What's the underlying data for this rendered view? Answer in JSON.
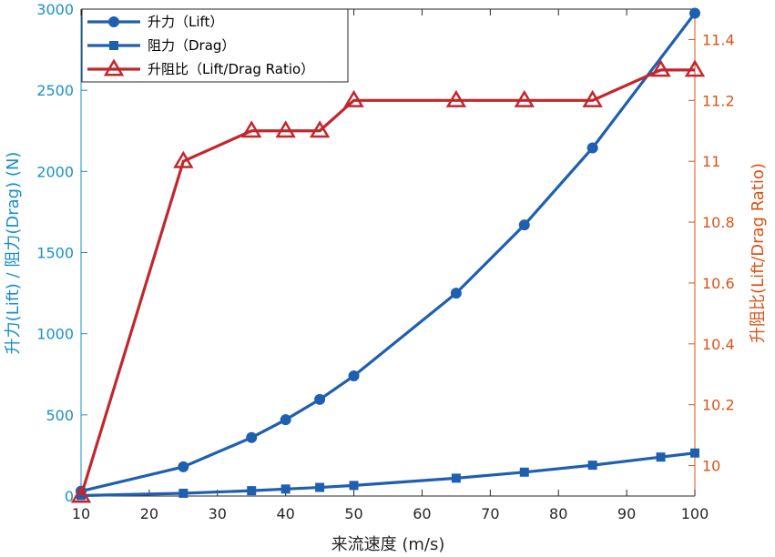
{
  "chart_data": {
    "type": "line",
    "xlabel": "来流速度 (m/s)",
    "ylabel_left": "升力(Lift) / 阻力(Drag) (N)",
    "ylabel_right": "升阻比(Lift/Drag Ratio)",
    "xlim": [
      10,
      100
    ],
    "ylim_left": [
      0,
      3000
    ],
    "ylim_right": [
      9.9,
      11.5
    ],
    "x_ticks": [
      10,
      20,
      30,
      40,
      50,
      60,
      70,
      80,
      90,
      100
    ],
    "y_left_ticks": [
      0,
      500,
      1000,
      1500,
      2000,
      2500,
      3000
    ],
    "y_right_ticks": [
      10,
      10.2,
      10.4,
      10.6,
      10.8,
      11,
      11.2,
      11.4
    ],
    "grid": false,
    "legend_position": "top-left",
    "series": [
      {
        "name": "升力（Lift）",
        "axis": "left",
        "marker": "circle",
        "color": "#1f5fb0",
        "x": [
          10,
          25,
          35,
          40,
          45,
          50,
          65,
          75,
          85,
          100
        ],
        "values": [
          30,
          180,
          360,
          470,
          595,
          740,
          1250,
          1670,
          2145,
          2975
        ]
      },
      {
        "name": "阻力（Drag）",
        "axis": "left",
        "marker": "square",
        "color": "#1f5fb0",
        "x": [
          10,
          25,
          35,
          40,
          45,
          50,
          65,
          75,
          85,
          95,
          100
        ],
        "values": [
          3,
          17,
          33,
          43,
          53,
          65,
          110,
          147,
          190,
          240,
          265
        ]
      },
      {
        "name": "升阻比（Lift/Drag Ratio）",
        "axis": "right",
        "marker": "triangle",
        "color": "#c1272d",
        "x": [
          10,
          25,
          35,
          40,
          45,
          50,
          65,
          75,
          85,
          95,
          100
        ],
        "values": [
          9.9,
          11.0,
          11.1,
          11.1,
          11.1,
          11.2,
          11.2,
          11.2,
          11.2,
          11.3,
          11.3
        ]
      }
    ],
    "colors": {
      "left_axis": "#1a8fc9",
      "right_axis": "#d95319",
      "axis_black": "#262626"
    }
  }
}
